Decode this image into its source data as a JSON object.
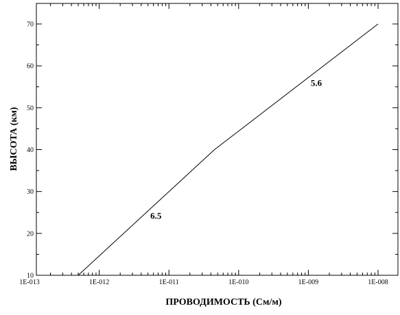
{
  "chart_data": {
    "type": "line",
    "xlabel": "ПРОВОДИМОСТЬ (См/м)",
    "ylabel": "ВЫСОТА (км)",
    "x_scale": "log",
    "xlim": [
      1e-13,
      1e-08
    ],
    "ylim": [
      10,
      75
    ],
    "x_ticks": [
      1e-13,
      1e-12,
      1e-11,
      1e-10,
      1e-09,
      1e-08
    ],
    "x_tick_labels": [
      "1E-013",
      "1E-012",
      "1E-011",
      "1E-010",
      "1E-009",
      "1E-008"
    ],
    "y_ticks": [
      10,
      20,
      30,
      40,
      50,
      60,
      70
    ],
    "y_tick_labels": [
      "10",
      "20",
      "30",
      "40",
      "50",
      "60",
      "70"
    ],
    "grid": false,
    "series": [
      {
        "x": [
          5e-13,
          4.5e-11,
          1e-08
        ],
        "y": [
          10,
          40,
          70
        ],
        "color": "#000000"
      }
    ],
    "annotations": [
      {
        "text": "6.5",
        "x": 6.5e-12,
        "y": 23.5
      },
      {
        "text": "5.6",
        "x": 1.3e-09,
        "y": 55.2
      }
    ]
  }
}
